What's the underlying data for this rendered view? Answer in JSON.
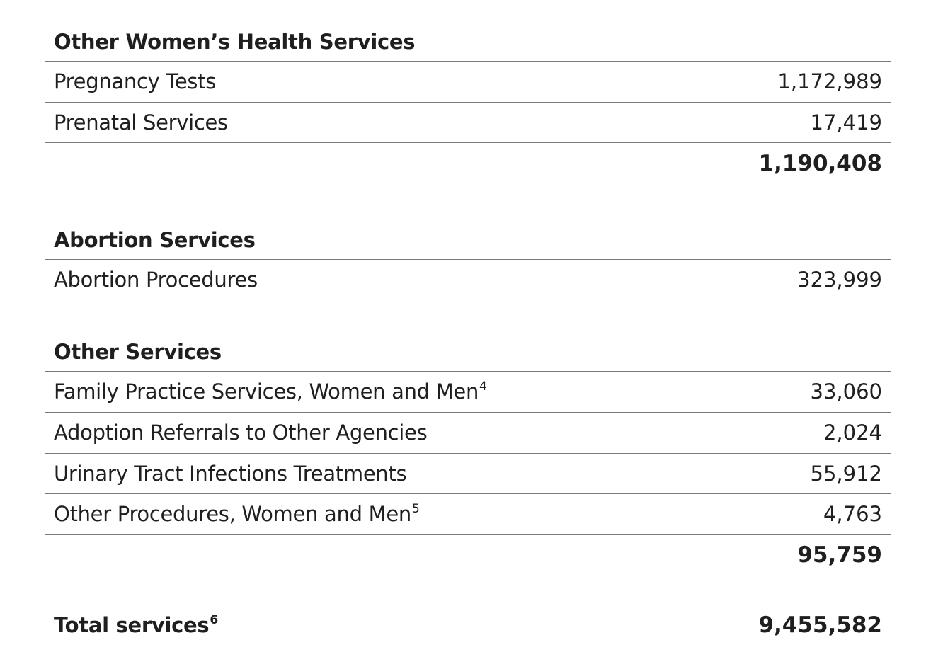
{
  "sections": [
    {
      "title": "Other Women’s Health Services",
      "rows": [
        {
          "label": "Pregnancy Tests",
          "value": "1,172,989"
        },
        {
          "label": "Prenatal Services",
          "value": "17,419"
        }
      ],
      "subtotal": "1,190,408"
    },
    {
      "title": "Abortion Services",
      "rows": [
        {
          "label": "Abortion Procedures",
          "value": "323,999"
        }
      ]
    },
    {
      "title": "Other Services",
      "rows": [
        {
          "label": "Family Practice Services, Women and Men",
          "note": "4",
          "value": "33,060"
        },
        {
          "label": "Adoption Referrals to Other Agencies",
          "value": "2,024"
        },
        {
          "label": "Urinary Tract Infections Treatments",
          "value": "55,912"
        },
        {
          "label": "Other Procedures, Women and Men",
          "note": "5",
          "value": "4,763"
        }
      ],
      "subtotal": "95,759"
    }
  ],
  "total": {
    "label": "Total services",
    "note": "6",
    "value": "9,455,582"
  }
}
